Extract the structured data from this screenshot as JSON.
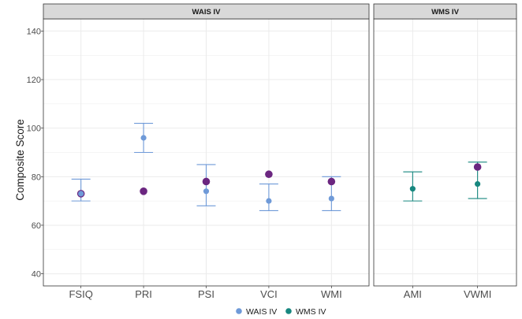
{
  "chart_data": {
    "type": "scatter",
    "ylabel": "Composite Score",
    "ylim": [
      35,
      145
    ],
    "y_ticks": [
      40,
      60,
      80,
      100,
      120,
      140
    ],
    "grid": true,
    "legend_position": "bottom",
    "colors": {
      "WAIS IV": "#6f9ad8",
      "WMS IV": "#17877f",
      "overlay": "#6b2680",
      "strip_bg": "#d9d9d9",
      "panel_border": "#333333",
      "grid": "#ebebeb"
    },
    "legend": [
      {
        "label": "WAIS IV",
        "color_key": "WAIS IV"
      },
      {
        "label": "WMS IV",
        "color_key": "WMS IV"
      }
    ],
    "panels": [
      {
        "title": "WAIS IV",
        "series_key": "WAIS IV",
        "categories": [
          "FSIQ",
          "PRI",
          "PSI",
          "VCI",
          "WMI"
        ],
        "points": [
          73,
          96,
          74,
          70,
          71
        ],
        "error_low": [
          70,
          90,
          68,
          66,
          66
        ],
        "error_high": [
          79,
          102,
          85,
          77,
          80
        ],
        "overlay_points": [
          73,
          74,
          78,
          81,
          78
        ]
      },
      {
        "title": "WMS IV",
        "series_key": "WMS IV",
        "categories": [
          "AMI",
          "VWMI"
        ],
        "points": [
          75,
          77
        ],
        "error_low": [
          70,
          71
        ],
        "error_high": [
          82,
          86
        ],
        "overlay_points": [
          null,
          84
        ]
      }
    ]
  }
}
